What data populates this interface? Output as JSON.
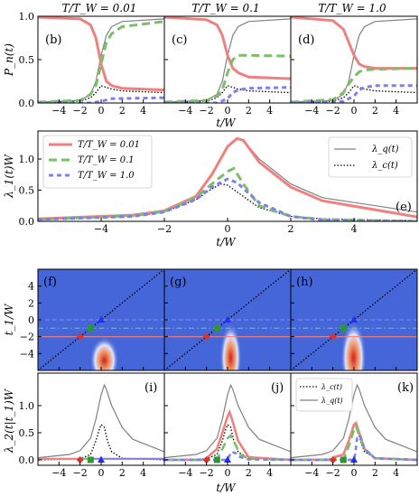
{
  "colors": {
    "red": "#f08080",
    "green": "#7cbf6a",
    "blue": "#7f7ff0",
    "gray": "#808080",
    "black": "#000000",
    "heat_bg": "#4466d8"
  },
  "chart_data": [
    {
      "id": "row1",
      "type": "line",
      "panel_titles": [
        "T/T_W = 0.01",
        "T/T_W = 0.1",
        "T/T_W = 1.0"
      ],
      "panel_labels": [
        "(b)",
        "(c)",
        "(d)"
      ],
      "ylabel": "P_n(t)",
      "xlabel": "t/W",
      "xticks": [
        "−4",
        "−2",
        "0",
        "2",
        "4"
      ],
      "yticks": [
        "0.0",
        "0.5",
        "1.0"
      ],
      "xlim": [
        -6,
        6
      ],
      "ylim": [
        0,
        1
      ],
      "series": [
        {
          "panel": "b",
          "style": "red",
          "x": [
            -6,
            -2,
            -1,
            -0.5,
            0,
            0.5,
            1,
            2,
            6
          ],
          "y": [
            0.99,
            0.97,
            0.9,
            0.75,
            0.45,
            0.25,
            0.2,
            0.17,
            0.15
          ]
        },
        {
          "panel": "b",
          "style": "green",
          "x": [
            -6,
            -2,
            -1,
            -0.5,
            0,
            0.5,
            1,
            2,
            6
          ],
          "y": [
            0.01,
            0.03,
            0.1,
            0.2,
            0.45,
            0.7,
            0.8,
            0.88,
            0.94
          ]
        },
        {
          "panel": "b",
          "style": "blue",
          "x": [
            -6,
            -1,
            0,
            1,
            6
          ],
          "y": [
            0.0,
            0.0,
            0.02,
            0.05,
            0.06
          ]
        },
        {
          "panel": "c",
          "style": "red",
          "x": [
            -6,
            -2,
            -1,
            -0.5,
            0,
            0.5,
            1,
            2,
            6
          ],
          "y": [
            0.99,
            0.96,
            0.9,
            0.78,
            0.55,
            0.4,
            0.35,
            0.3,
            0.28
          ]
        },
        {
          "panel": "c",
          "style": "green",
          "x": [
            -6,
            -2,
            -1,
            -0.5,
            0,
            0.5,
            1,
            2,
            6
          ],
          "y": [
            0.01,
            0.03,
            0.08,
            0.15,
            0.35,
            0.5,
            0.55,
            0.55,
            0.54
          ]
        },
        {
          "panel": "c",
          "style": "blue",
          "x": [
            -6,
            -1,
            0,
            0.5,
            1,
            2,
            6
          ],
          "y": [
            0.0,
            0.0,
            0.05,
            0.12,
            0.15,
            0.17,
            0.18
          ]
        },
        {
          "panel": "d",
          "style": "red",
          "x": [
            -6,
            -2,
            -1,
            -0.5,
            0,
            0.5,
            1,
            2,
            6
          ],
          "y": [
            0.99,
            0.95,
            0.85,
            0.7,
            0.55,
            0.45,
            0.42,
            0.4,
            0.4
          ]
        },
        {
          "panel": "d",
          "style": "green",
          "x": [
            -6,
            -2,
            -1,
            -0.5,
            0,
            0.5,
            1,
            2,
            6
          ],
          "y": [
            0.01,
            0.04,
            0.12,
            0.22,
            0.3,
            0.36,
            0.38,
            0.39,
            0.4
          ]
        },
        {
          "panel": "d",
          "style": "blue",
          "x": [
            -6,
            -1,
            0,
            0.5,
            1,
            2,
            6
          ],
          "y": [
            0.0,
            0.02,
            0.08,
            0.15,
            0.18,
            0.2,
            0.2
          ]
        }
      ]
    },
    {
      "id": "row2",
      "type": "line",
      "panel_label": "(e)",
      "ylabel": "λ_1(t)W",
      "xlabel": "t/W",
      "xticks": [
        "−4",
        "−2",
        "0",
        "2",
        "4"
      ],
      "yticks": [
        "0.0",
        "0.5",
        "1.0"
      ],
      "xlim": [
        -6,
        6
      ],
      "ylim": [
        0,
        1.45
      ],
      "legend_left": [
        "T/T_W = 0.01",
        "T/T_W = 0.1",
        "T/T_W = 1.0"
      ],
      "legend_right": [
        "λ_q(t)",
        "λ_c(t)"
      ],
      "series": [
        {
          "style": "gray",
          "x": [
            -6,
            -3,
            -2,
            -1,
            -0.5,
            0,
            0.3,
            0.5,
            1,
            2,
            3,
            6
          ],
          "y": [
            0.04,
            0.1,
            0.17,
            0.4,
            0.75,
            1.2,
            1.33,
            1.3,
            1.0,
            0.6,
            0.38,
            0.15
          ]
        },
        {
          "style": "black",
          "x": [
            -6,
            -3,
            -2,
            -1,
            -0.5,
            -0.2,
            0,
            0.5,
            1,
            2,
            3,
            6
          ],
          "y": [
            0.03,
            0.08,
            0.15,
            0.35,
            0.52,
            0.6,
            0.58,
            0.4,
            0.22,
            0.08,
            0.04,
            0.01
          ]
        },
        {
          "style": "red",
          "x": [
            -6,
            -3,
            -2,
            -1,
            -0.5,
            0,
            0.3,
            0.5,
            1,
            2,
            3,
            6
          ],
          "y": [
            0.04,
            0.1,
            0.17,
            0.4,
            0.75,
            1.2,
            1.33,
            1.3,
            0.95,
            0.55,
            0.33,
            0.07
          ]
        },
        {
          "style": "green",
          "x": [
            -6,
            -3,
            -2,
            -1,
            -0.5,
            0,
            0.2,
            0.5,
            1,
            2,
            3,
            6
          ],
          "y": [
            0.03,
            0.09,
            0.16,
            0.38,
            0.6,
            0.8,
            0.85,
            0.6,
            0.25,
            0.08,
            0.03,
            0.0
          ]
        },
        {
          "style": "blue",
          "x": [
            -6,
            -3,
            -2,
            -1,
            -0.5,
            0,
            0.3,
            1,
            2,
            3,
            6
          ],
          "y": [
            0.03,
            0.08,
            0.15,
            0.35,
            0.55,
            0.68,
            0.62,
            0.3,
            0.08,
            0.02,
            0.0
          ]
        }
      ]
    },
    {
      "id": "row3",
      "type": "heatmap",
      "panel_labels": [
        "(f)",
        "(g)",
        "(h)"
      ],
      "ylabel": "t_1/W",
      "xticks": [
        "−4",
        "−2",
        "0",
        "2",
        "4"
      ],
      "yticks": [
        "4",
        "2",
        "0",
        "−2",
        "−4"
      ],
      "xlim": [
        -6,
        6
      ],
      "ylim": [
        -6,
        6
      ],
      "hlines": [
        {
          "y": -2,
          "style": "red"
        },
        {
          "y": -1,
          "style": "green"
        },
        {
          "y": 0,
          "style": "blue"
        }
      ],
      "markers": [
        {
          "x": -2,
          "y": -2,
          "style": "red"
        },
        {
          "x": -1,
          "y": -1,
          "style": "green"
        },
        {
          "x": 0,
          "y": 0,
          "style": "blue"
        }
      ]
    },
    {
      "id": "row4",
      "type": "line",
      "panel_labels": [
        "(i)",
        "(j)",
        "(k)"
      ],
      "ylabel": "λ_2(t|t_1)W",
      "xlabel": "t/W",
      "xticks": [
        "−4",
        "−2",
        "0",
        "2",
        "4"
      ],
      "yticks": [
        "0.0",
        "0.5",
        "1.0"
      ],
      "xlim": [
        -6,
        6
      ],
      "ylim": [
        -0.1,
        1.6
      ],
      "legend": [
        "λ_c(t)",
        "λ_q(t)"
      ],
      "series": [
        {
          "style": "gray",
          "x": [
            -6,
            -3,
            -2,
            -1,
            -0.5,
            0,
            0.3,
            0.5,
            1,
            2,
            3,
            6
          ],
          "y": [
            0.04,
            0.1,
            0.17,
            0.4,
            0.75,
            1.2,
            1.38,
            1.3,
            1.0,
            0.6,
            0.38,
            0.15
          ]
        },
        {
          "style": "black",
          "x": [
            -6,
            -2,
            -1,
            -0.5,
            -0.2,
            0,
            0.3,
            0.6,
            1,
            2,
            6
          ],
          "y": [
            0.0,
            0.02,
            0.1,
            0.35,
            0.55,
            0.65,
            0.6,
            0.35,
            0.15,
            0.03,
            0.0
          ]
        },
        {
          "panel": "j",
          "style": "red",
          "x": [
            -6,
            -2,
            -1.9,
            -1,
            -0.5,
            0,
            0.2,
            0.5,
            1,
            2,
            6
          ],
          "y": [
            0,
            0,
            0.05,
            0.2,
            0.5,
            0.8,
            0.88,
            0.7,
            0.35,
            0.05,
            0
          ]
        },
        {
          "panel": "j",
          "style": "green",
          "x": [
            -6,
            -1,
            -0.9,
            -0.5,
            0,
            0.3,
            0.7,
            1.2,
            2,
            6
          ],
          "y": [
            0,
            0,
            0.05,
            0.2,
            0.4,
            0.45,
            0.3,
            0.1,
            0.02,
            0
          ]
        },
        {
          "panel": "j",
          "style": "blue",
          "x": [
            -6,
            0,
            0.1,
            0.4,
            0.8,
            1.2,
            2,
            6
          ],
          "y": [
            0,
            0,
            0.05,
            0.15,
            0.12,
            0.05,
            0.01,
            0
          ]
        },
        {
          "panel": "k",
          "style": "red",
          "x": [
            -6,
            -2,
            -1.9,
            -1,
            -0.5,
            0,
            0.2,
            0.5,
            1,
            2,
            6
          ],
          "y": [
            0,
            0,
            0.05,
            0.1,
            0.35,
            0.65,
            0.68,
            0.5,
            0.2,
            0.03,
            0
          ]
        },
        {
          "panel": "k",
          "style": "green",
          "x": [
            -6,
            -1,
            -0.9,
            -0.5,
            0,
            0.2,
            0.5,
            1,
            2,
            6
          ],
          "y": [
            0,
            0,
            0.05,
            0.25,
            0.55,
            0.62,
            0.45,
            0.2,
            0.03,
            0
          ]
        },
        {
          "panel": "k",
          "style": "blue",
          "x": [
            -6,
            0,
            0.1,
            0.3,
            0.6,
            1,
            2,
            6
          ],
          "y": [
            0,
            0,
            0.1,
            0.4,
            0.45,
            0.2,
            0.03,
            0
          ]
        }
      ],
      "markers": [
        {
          "x": -2,
          "style": "red"
        },
        {
          "x": -1,
          "style": "green"
        },
        {
          "x": 0,
          "style": "blue"
        }
      ]
    }
  ]
}
